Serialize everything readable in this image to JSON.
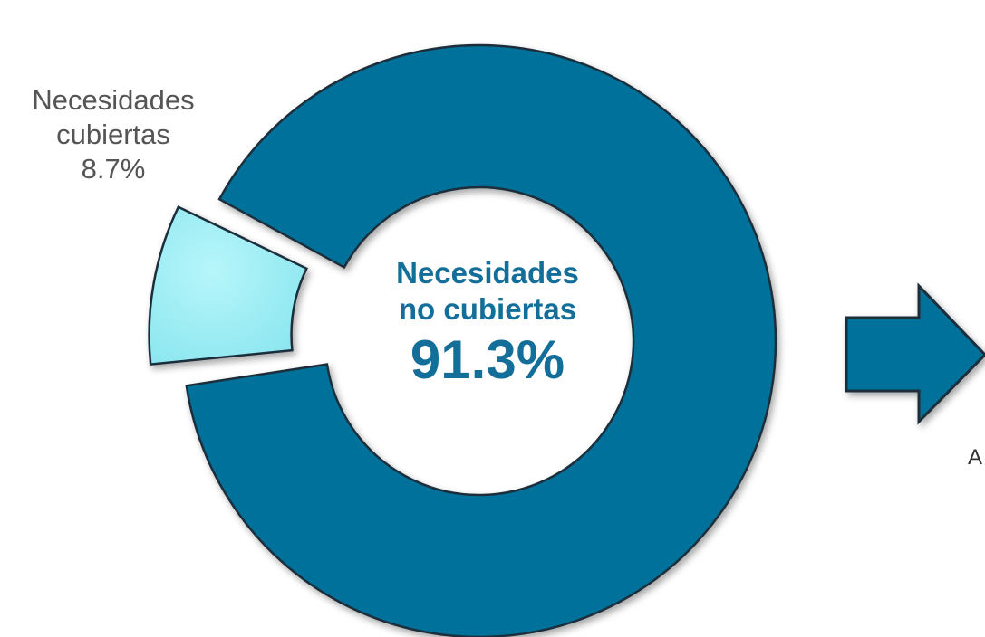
{
  "chart_data": {
    "type": "pie",
    "style": "donut",
    "slices": [
      {
        "label": "Necesidades no cubiertas",
        "line1": "Necesidades",
        "line2": "no cubiertas",
        "value": 91.3,
        "value_text": "91.3%",
        "color": "#04719b"
      },
      {
        "label": "Necesidades cubiertas",
        "line1": "Necesidades",
        "line2": "cubiertas",
        "value": 8.7,
        "value_text": "8.7%",
        "color": "#9ceef4",
        "exploded": true
      }
    ]
  },
  "colors": {
    "outline": "#1a2f3a",
    "center_text": "#136f99",
    "outer_text": "#555555",
    "arrow": "#04719b"
  },
  "arrow": {
    "icon": "right-arrow-icon",
    "caption": "A"
  }
}
